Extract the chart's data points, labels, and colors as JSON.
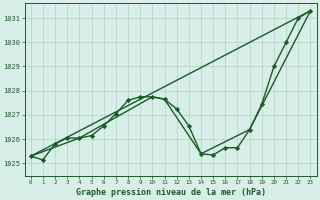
{
  "background_color": "#d8eee8",
  "plot_bg_color": "#d8eee8",
  "grid_color": "#b0d4c0",
  "line_color": "#1a5c28",
  "marker_color": "#1a5c28",
  "title": "Graphe pression niveau de la mer (hPa)",
  "xlim": [
    -0.5,
    23.5
  ],
  "ylim": [
    1024.5,
    1031.6
  ],
  "yticks": [
    1025,
    1026,
    1027,
    1028,
    1029,
    1030,
    1031
  ],
  "xticks": [
    0,
    1,
    2,
    3,
    4,
    5,
    6,
    7,
    8,
    9,
    10,
    11,
    12,
    13,
    14,
    15,
    16,
    17,
    18,
    19,
    20,
    21,
    22,
    23
  ],
  "series": [
    {
      "x": [
        0,
        1,
        2,
        3,
        4,
        5,
        6,
        7,
        8,
        9,
        10,
        11,
        12,
        13,
        14,
        15,
        16,
        17,
        18,
        19,
        20,
        21,
        22,
        23
      ],
      "y": [
        1025.3,
        1025.15,
        1025.8,
        1026.05,
        1026.05,
        1026.15,
        1026.55,
        1027.05,
        1027.6,
        1027.75,
        1027.75,
        1027.65,
        1027.25,
        1026.55,
        1025.4,
        1025.35,
        1025.65,
        1025.65,
        1026.4,
        1027.45,
        1029.0,
        1030.0,
        1031.0,
        1031.3
      ],
      "has_markers": true,
      "lw": 1.0
    },
    {
      "x": [
        0,
        23
      ],
      "y": [
        1025.3,
        1031.3
      ],
      "has_markers": false,
      "lw": 1.0
    },
    {
      "x": [
        0,
        4,
        10,
        11,
        14,
        18,
        23
      ],
      "y": [
        1025.3,
        1026.05,
        1027.75,
        1027.65,
        1025.4,
        1026.4,
        1031.3
      ],
      "has_markers": false,
      "lw": 1.0
    }
  ]
}
